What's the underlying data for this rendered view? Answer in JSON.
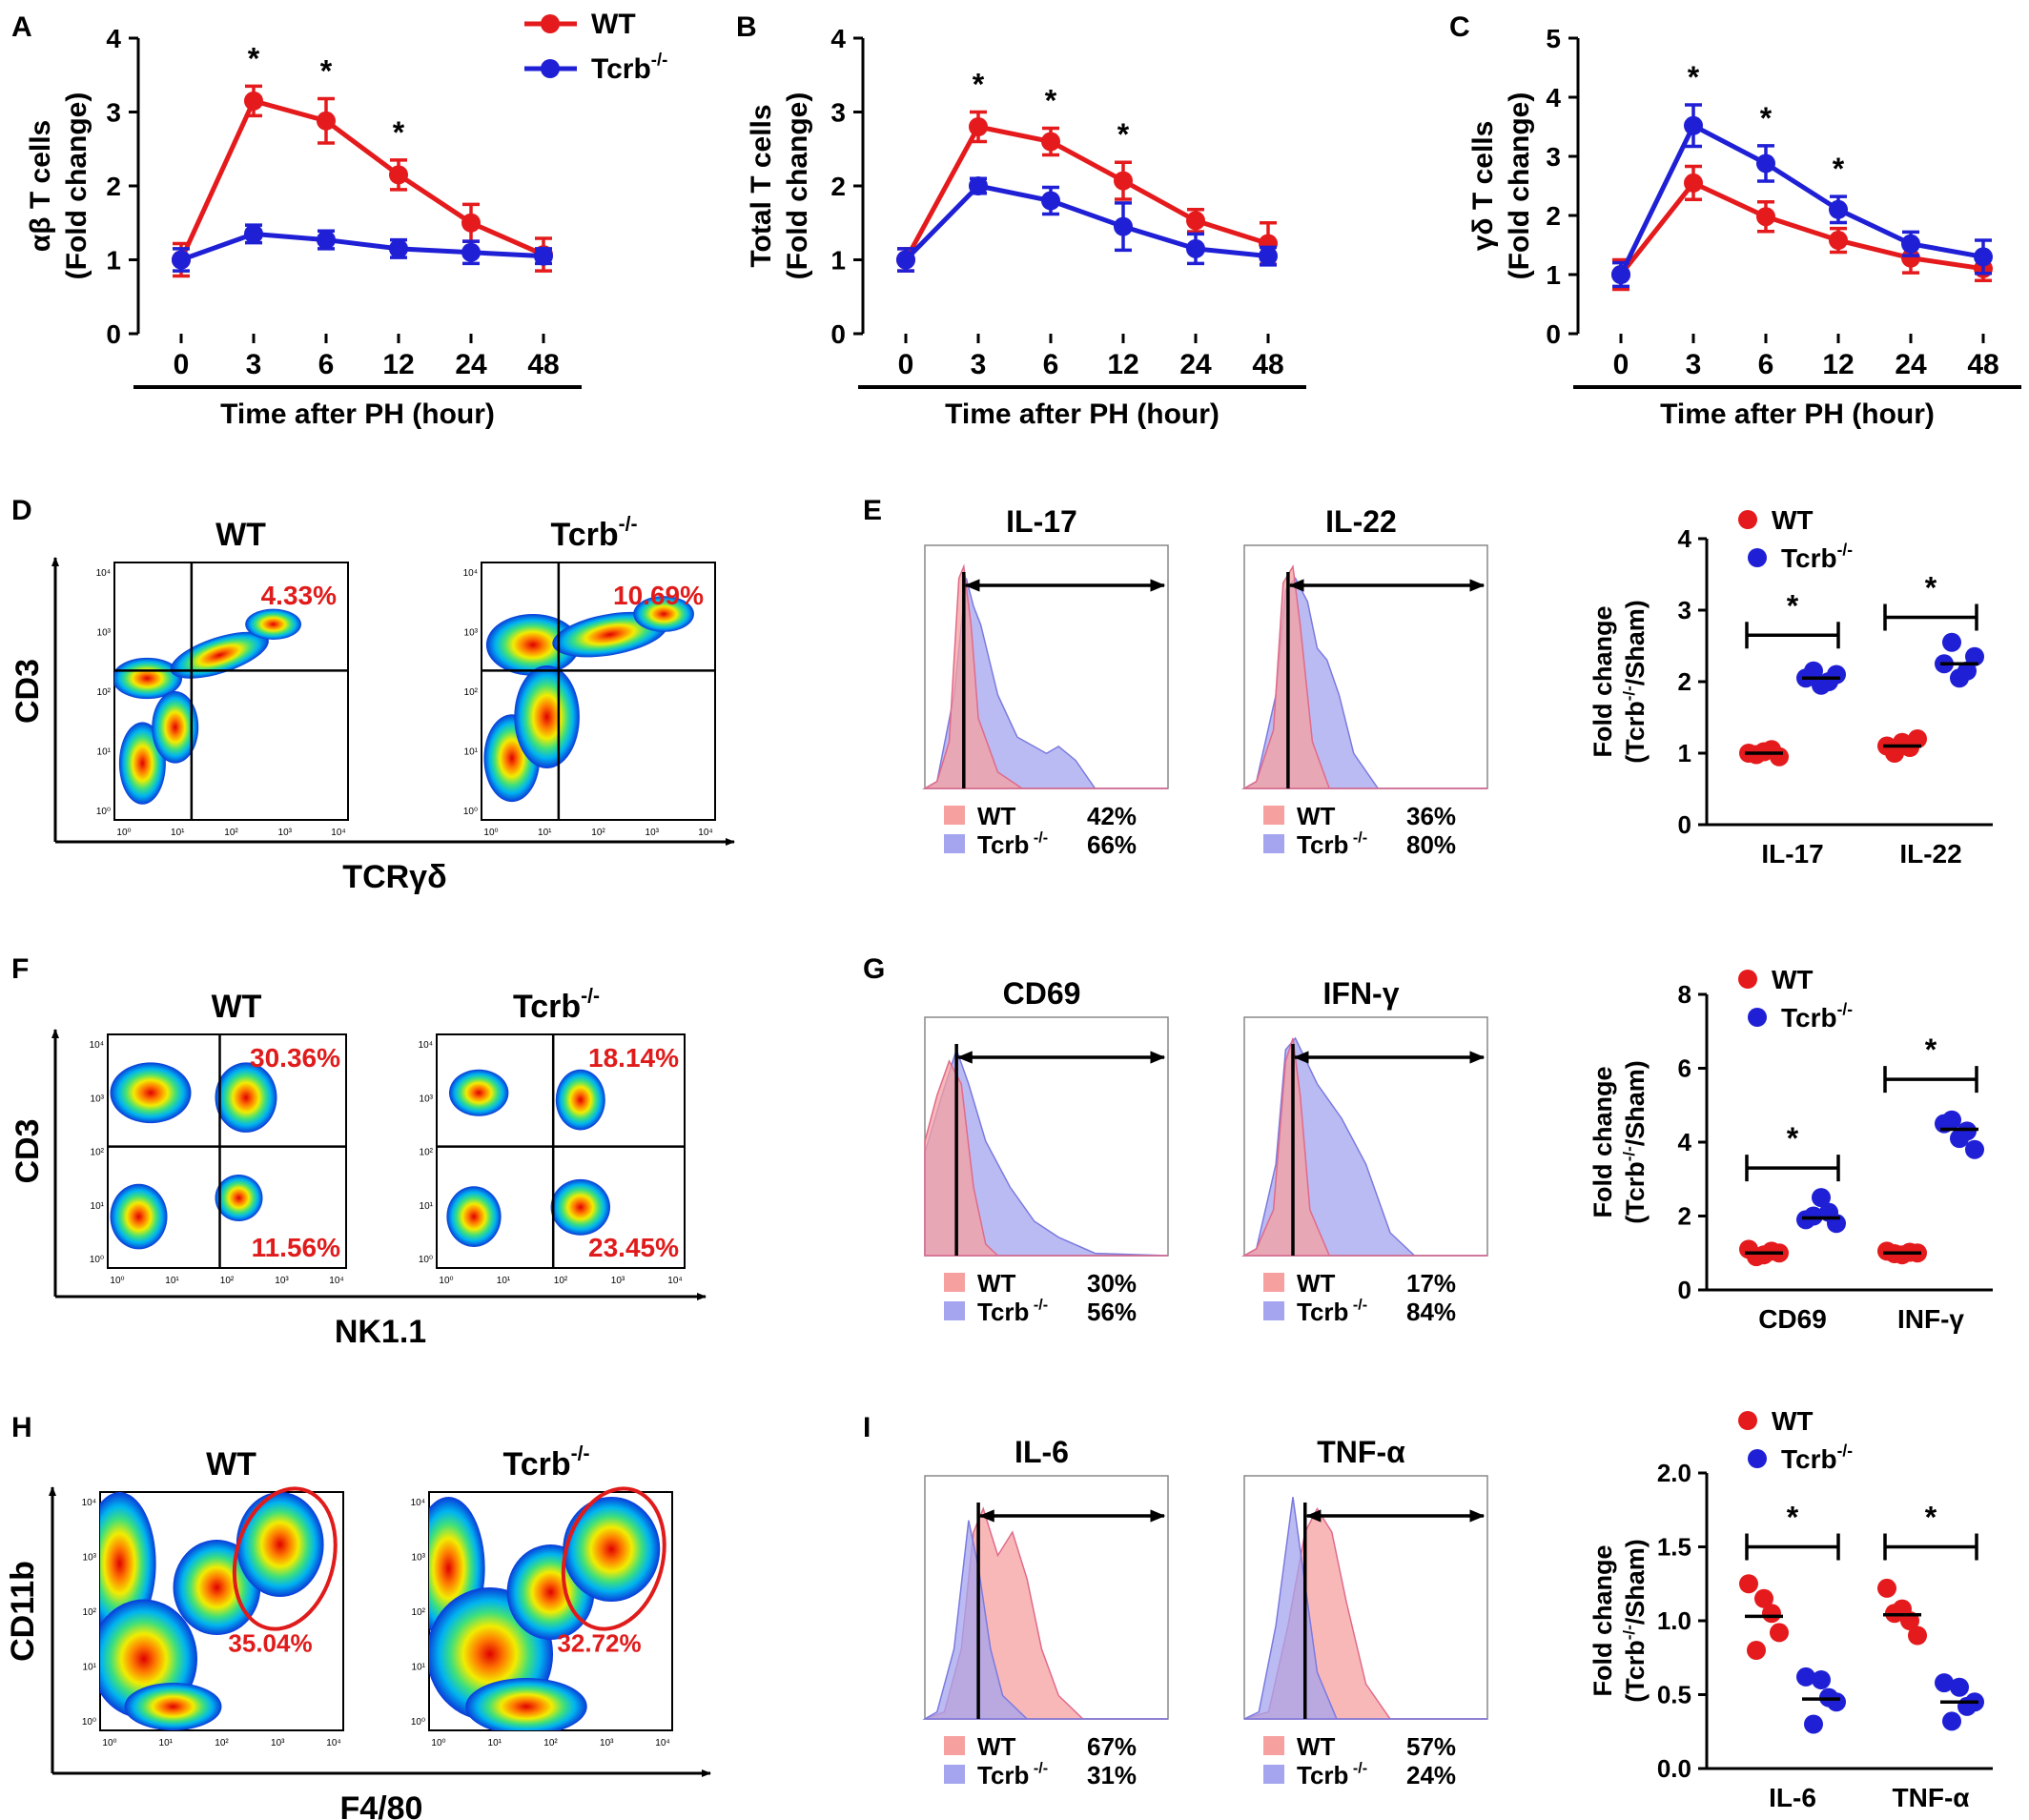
{
  "colors": {
    "wt": "#e41a1c",
    "ko": "#1f1fd6",
    "wt_fill": "#f7a0a0",
    "ko_fill": "#a4a4ef",
    "pct": "#e01b1b",
    "axis": "#000000"
  },
  "legend": {
    "wt": "WT",
    "ko": "Tcrb"
  },
  "superscript": "-/-",
  "sup_gap": " -/-",
  "star": "*",
  "chart_data": [
    {
      "panel": "A",
      "type": "line",
      "x": [
        0,
        3,
        6,
        12,
        24,
        48
      ],
      "xlabel": "Time after PH (hour)",
      "ylabel": "αβ T cells",
      "ylabel2": "(Fold change)",
      "ylim": [
        0,
        4
      ],
      "yticks": [
        0,
        1,
        2,
        3,
        4
      ],
      "series": [
        {
          "name": "WT",
          "values": [
            1.0,
            3.15,
            2.88,
            2.15,
            1.5,
            1.07
          ],
          "err": [
            0.22,
            0.2,
            0.3,
            0.2,
            0.25,
            0.22
          ]
        },
        {
          "name": "Tcrb",
          "values": [
            1.0,
            1.35,
            1.27,
            1.15,
            1.1,
            1.05
          ],
          "err": [
            0.15,
            0.12,
            0.12,
            0.12,
            0.15,
            0.1
          ]
        }
      ],
      "sig": [
        3,
        6,
        12
      ]
    },
    {
      "panel": "B",
      "type": "line",
      "x": [
        0,
        3,
        6,
        12,
        24,
        48
      ],
      "xlabel": "Time after PH (hour)",
      "ylabel": "Total T cells",
      "ylabel2": "(Fold change)",
      "ylim": [
        0,
        4
      ],
      "yticks": [
        0,
        1,
        2,
        3,
        4
      ],
      "series": [
        {
          "name": "WT",
          "values": [
            1.0,
            2.8,
            2.6,
            2.07,
            1.53,
            1.22
          ],
          "err": [
            0.15,
            0.2,
            0.18,
            0.25,
            0.15,
            0.28
          ]
        },
        {
          "name": "Tcrb",
          "values": [
            1.0,
            2.0,
            1.8,
            1.45,
            1.15,
            1.05
          ],
          "err": [
            0.15,
            0.1,
            0.18,
            0.32,
            0.2,
            0.12
          ]
        }
      ],
      "sig": [
        3,
        6,
        12
      ]
    },
    {
      "panel": "C",
      "type": "line",
      "x": [
        0,
        3,
        6,
        12,
        24,
        48
      ],
      "xlabel": "Time after PH (hour)",
      "ylabel": "γδ T cells",
      "ylabel2": "(Fold change)",
      "ylim": [
        0,
        5
      ],
      "yticks": [
        0,
        1,
        2,
        3,
        4,
        5
      ],
      "series": [
        {
          "name": "WT",
          "values": [
            1.0,
            2.55,
            1.98,
            1.58,
            1.28,
            1.1
          ],
          "err": [
            0.25,
            0.28,
            0.25,
            0.2,
            0.25,
            0.2
          ]
        },
        {
          "name": "Tcrb",
          "values": [
            1.0,
            3.52,
            2.88,
            2.1,
            1.52,
            1.3
          ],
          "err": [
            0.2,
            0.35,
            0.3,
            0.22,
            0.2,
            0.28
          ]
        }
      ],
      "sig": [
        3,
        6,
        12
      ]
    },
    {
      "panel": "E",
      "type": "scatter",
      "categories": [
        "IL-17",
        "IL-22"
      ],
      "ylabel": "Fold change",
      "ylabel2": "(Tcrb",
      "ylabel3": "/Sham)",
      "ylim": [
        0,
        4
      ],
      "yticks": [
        "0",
        "1",
        "2",
        "3",
        "4"
      ],
      "ytick_values": [
        0,
        1,
        2,
        3,
        4
      ],
      "groups": [
        {
          "wt": [
            1.0,
            1.02,
            0.95,
            0.98,
            1.05
          ],
          "ko": [
            2.05,
            1.95,
            2.1,
            2.15,
            2.0
          ],
          "wt_mean": 1.0,
          "ko_mean": 2.05
        },
        {
          "wt": [
            1.1,
            1.15,
            1.2,
            1.0,
            1.08
          ],
          "ko": [
            2.25,
            2.05,
            2.35,
            2.55,
            2.15
          ],
          "wt_mean": 1.1,
          "ko_mean": 2.25
        }
      ],
      "brackets": [
        2.65,
        2.9
      ]
    },
    {
      "panel": "G",
      "type": "scatter",
      "categories": [
        "CD69",
        "INF-γ"
      ],
      "ylabel": "Fold change",
      "ylabel2": "(Tcrb",
      "ylabel3": "/Sham)",
      "ylim": [
        0,
        8
      ],
      "yticks": [
        "0",
        "2",
        "4",
        "6",
        "8"
      ],
      "ytick_values": [
        0,
        2,
        4,
        6,
        8
      ],
      "groups": [
        {
          "wt": [
            1.1,
            0.95,
            1.0,
            0.9,
            1.05
          ],
          "ko": [
            1.9,
            2.5,
            1.8,
            2.0,
            2.1
          ],
          "wt_mean": 1.0,
          "ko_mean": 1.95
        },
        {
          "wt": [
            1.05,
            0.95,
            1.0,
            0.98,
            1.02
          ],
          "ko": [
            4.5,
            4.1,
            3.8,
            4.6,
            4.3
          ],
          "wt_mean": 1.0,
          "ko_mean": 4.35
        }
      ],
      "brackets": [
        3.3,
        5.7
      ]
    },
    {
      "panel": "I",
      "type": "scatter",
      "categories": [
        "IL-6",
        "TNF-α"
      ],
      "ylabel": "Fold change",
      "ylabel2": "(Tcrb",
      "ylabel3": "/Sham)",
      "ylim": [
        0,
        2.0
      ],
      "yticks": [
        "0.0",
        "0.5",
        "1.0",
        "1.5",
        "2.0"
      ],
      "ytick_values": [
        0,
        0.5,
        1.0,
        1.5,
        2.0
      ],
      "groups": [
        {
          "wt": [
            1.25,
            1.15,
            0.92,
            0.8,
            1.05
          ],
          "ko": [
            0.62,
            0.6,
            0.45,
            0.3,
            0.48
          ],
          "wt_mean": 1.03,
          "ko_mean": 0.47
        },
        {
          "wt": [
            1.22,
            1.08,
            0.9,
            1.05,
            1.0
          ],
          "ko": [
            0.58,
            0.55,
            0.45,
            0.32,
            0.42
          ],
          "wt_mean": 1.04,
          "ko_mean": 0.45
        }
      ],
      "brackets": [
        1.5,
        1.5
      ]
    }
  ],
  "flow": [
    {
      "panel": "D",
      "xlabel": "TCRγδ",
      "ylabel": "CD3",
      "titles": [
        "WT",
        "Tcrb"
      ],
      "values": [
        [
          "4.33%"
        ],
        [
          "10.69%"
        ]
      ]
    },
    {
      "panel": "F",
      "xlabel": "NK1.1",
      "ylabel": "CD3",
      "titles": [
        "WT",
        "Tcrb"
      ],
      "values": [
        [
          "30.36%",
          "11.56%"
        ],
        [
          "18.14%",
          "23.45%"
        ]
      ]
    },
    {
      "panel": "H",
      "xlabel": "F4/80",
      "ylabel": "CD11b",
      "titles": [
        "WT",
        "Tcrb"
      ],
      "values": [
        [
          "35.04%"
        ],
        [
          "32.72%"
        ]
      ]
    }
  ],
  "flow_ticks": [
    "10⁰",
    "10¹",
    "10²",
    "10³",
    "10⁴"
  ],
  "hist": [
    {
      "panel": "E",
      "items": [
        {
          "title": "IL-17",
          "wt": "42%",
          "ko": "66%"
        },
        {
          "title": "IL-22",
          "wt": "36%",
          "ko": "80%"
        }
      ]
    },
    {
      "panel": "G",
      "items": [
        {
          "title": "CD69",
          "wt": "30%",
          "ko": "56%"
        },
        {
          "title": "IFN-γ",
          "wt": "17%",
          "ko": "84%"
        }
      ]
    },
    {
      "panel": "I",
      "items": [
        {
          "title": "IL-6",
          "wt": "67%",
          "ko": "31%"
        },
        {
          "title": "TNF-α",
          "wt": "57%",
          "ko": "24%"
        }
      ]
    }
  ]
}
